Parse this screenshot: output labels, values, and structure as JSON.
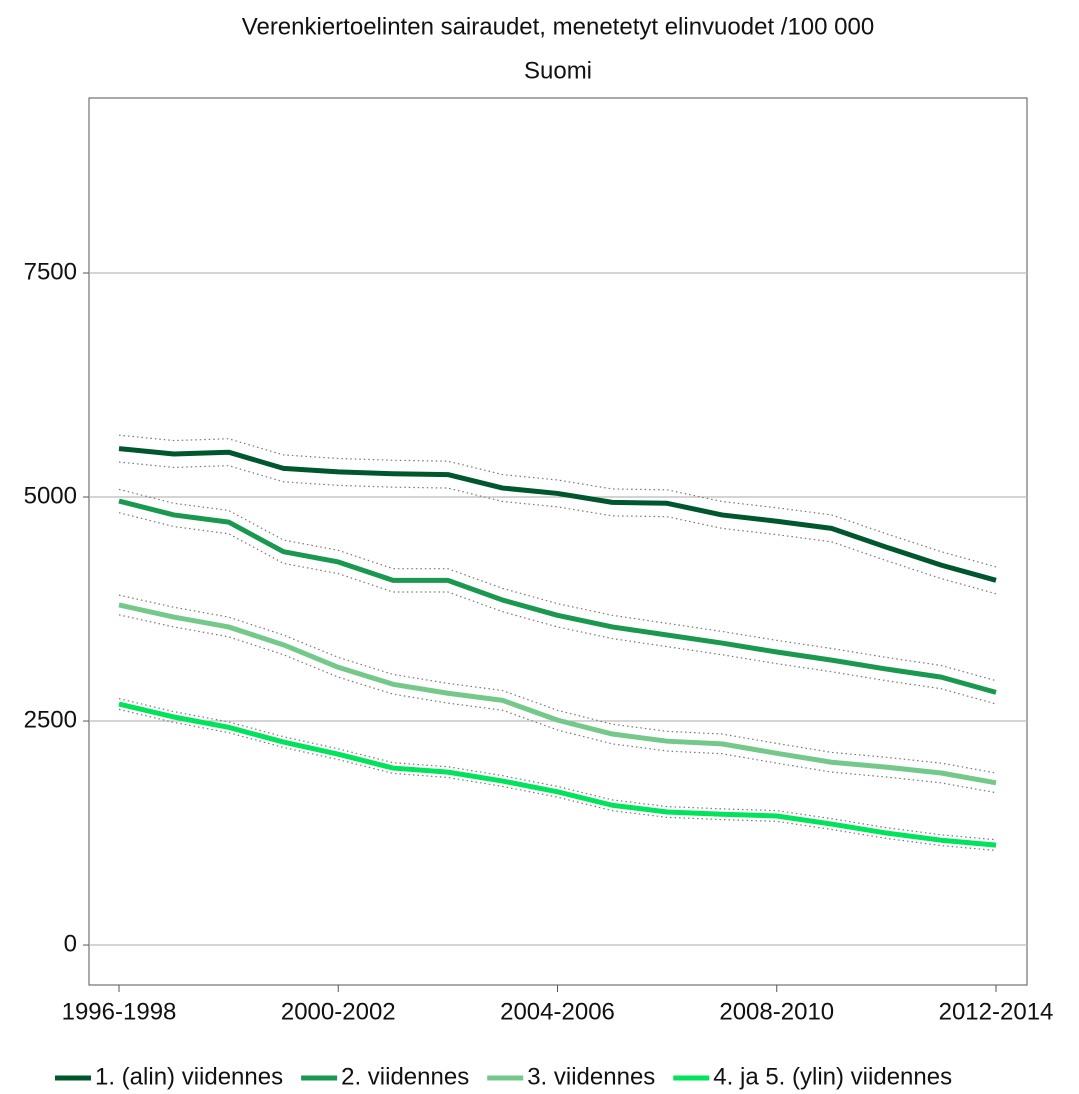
{
  "chart_data": {
    "type": "line",
    "title": "Verenkiertoelinten sairaudet, menetetyt elinvuodet /100 000",
    "subtitle": "Suomi",
    "categories": [
      "1996-1998",
      null,
      null,
      null,
      "2000-2002",
      null,
      null,
      null,
      "2004-2006",
      null,
      null,
      null,
      "2008-2010",
      null,
      null,
      null,
      "2012-2014"
    ],
    "ylim": [
      -446,
      9453
    ],
    "yticks": [
      0,
      2500,
      5000,
      7500
    ],
    "grid": true,
    "legend": "bottom",
    "series": [
      {
        "name": "1. (alin) viidennes",
        "color": "#00572d",
        "values": [
          5540,
          5480,
          5500,
          5320,
          5280,
          5260,
          5250,
          5100,
          5040,
          4940,
          4930,
          4800,
          4730,
          4650,
          4440,
          4240,
          4070
        ],
        "lower": [
          5390,
          5330,
          5350,
          5170,
          5130,
          5110,
          5100,
          4950,
          4890,
          4790,
          4780,
          4650,
          4580,
          4500,
          4290,
          4090,
          3920
        ],
        "upper": [
          5690,
          5630,
          5650,
          5470,
          5430,
          5410,
          5400,
          5250,
          5190,
          5090,
          5080,
          4950,
          4880,
          4800,
          4590,
          4390,
          4220
        ]
      },
      {
        "name": "2. viidennes",
        "color": "#1a9850",
        "values": [
          4955,
          4800,
          4720,
          4390,
          4275,
          4070,
          4070,
          3850,
          3680,
          3550,
          3460,
          3370,
          3270,
          3180,
          3080,
          2990,
          2820
        ],
        "lower": [
          4825,
          4670,
          4590,
          4260,
          4145,
          3940,
          3940,
          3720,
          3550,
          3420,
          3330,
          3240,
          3140,
          3050,
          2950,
          2860,
          2690
        ],
        "upper": [
          5085,
          4930,
          4850,
          4520,
          4405,
          4200,
          4200,
          3980,
          3810,
          3680,
          3590,
          3500,
          3400,
          3310,
          3210,
          3120,
          2950
        ]
      },
      {
        "name": "3. viidennes",
        "color": "#74c98a",
        "values": [
          3795,
          3660,
          3550,
          3350,
          3100,
          2910,
          2810,
          2730,
          2510,
          2355,
          2275,
          2245,
          2140,
          2040,
          1985,
          1920,
          1810
        ],
        "lower": [
          3685,
          3550,
          3440,
          3240,
          2990,
          2800,
          2700,
          2620,
          2400,
          2245,
          2165,
          2135,
          2030,
          1930,
          1875,
          1810,
          1700
        ],
        "upper": [
          3905,
          3770,
          3660,
          3460,
          3210,
          3020,
          2920,
          2840,
          2620,
          2465,
          2385,
          2355,
          2250,
          2150,
          2095,
          2030,
          1920
        ]
      },
      {
        "name": "4. ja 5. (ylin) viidennes",
        "color": "#00e35a",
        "values": [
          2690,
          2545,
          2430,
          2265,
          2130,
          1975,
          1930,
          1830,
          1710,
          1560,
          1485,
          1460,
          1440,
          1350,
          1250,
          1170,
          1115
        ],
        "lower": [
          2630,
          2485,
          2370,
          2205,
          2070,
          1915,
          1870,
          1770,
          1650,
          1500,
          1425,
          1400,
          1380,
          1290,
          1190,
          1110,
          1055
        ],
        "upper": [
          2750,
          2605,
          2490,
          2325,
          2190,
          2035,
          1990,
          1890,
          1770,
          1620,
          1545,
          1520,
          1500,
          1410,
          1310,
          1230,
          1175
        ]
      }
    ]
  }
}
